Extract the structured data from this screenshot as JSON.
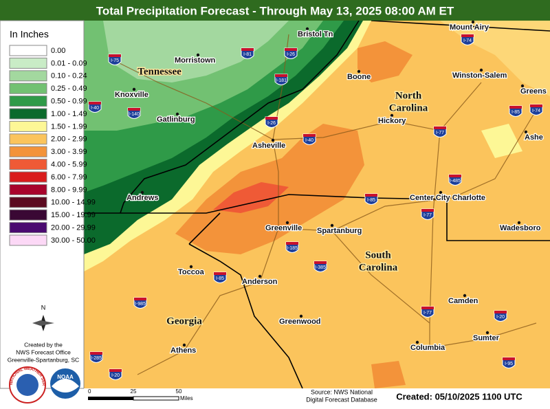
{
  "header": {
    "title": "Total Precipitation Forecast - Through May 13, 2025 08:00 AM ET"
  },
  "legend": {
    "title": "In Inches",
    "items": [
      {
        "label": "0.00",
        "color": "#ffffff"
      },
      {
        "label": "0.01 - 0.09",
        "color": "#c9ecc6"
      },
      {
        "label": "0.10 - 0.24",
        "color": "#a3d89f"
      },
      {
        "label": "0.25 - 0.49",
        "color": "#72c172"
      },
      {
        "label": "0.50 - 0.99",
        "color": "#2f9a48"
      },
      {
        "label": "1.00 - 1.49",
        "color": "#0b6a2c"
      },
      {
        "label": "1.50 - 1.99",
        "color": "#fdf796"
      },
      {
        "label": "2.00 - 2.99",
        "color": "#fbc45c"
      },
      {
        "label": "3.00 - 3.99",
        "color": "#f3933a"
      },
      {
        "label": "4.00 - 5.99",
        "color": "#ef5a36"
      },
      {
        "label": "6.00 - 7.99",
        "color": "#d91c1c"
      },
      {
        "label": "8.00 - 9.99",
        "color": "#a8042c"
      },
      {
        "label": "10.00 - 14.99",
        "color": "#5c0a20"
      },
      {
        "label": "15.00 - 19.99",
        "color": "#3a0834"
      },
      {
        "label": "20.00 - 29.99",
        "color": "#4a0a70"
      },
      {
        "label": "30.00 - 50.00",
        "color": "#fcd8f6"
      }
    ]
  },
  "compass": "N",
  "office": [
    "Created by the",
    "NWS Forecast Office",
    "Greenville-Spartanburg, SC"
  ],
  "logos": {
    "nws": "NATIONAL WEATHER SERVICE",
    "noaa": "NOAA"
  },
  "states": [
    {
      "lines": [
        "Tennessee"
      ]
    },
    {
      "lines": [
        "North",
        "Carolina"
      ]
    },
    {
      "lines": [
        "South",
        "Carolina"
      ]
    },
    {
      "lines": [
        "Georgia"
      ]
    }
  ],
  "cities": [
    "Bristol Tn",
    "Mount Airy",
    "Morristown",
    "Knoxville",
    "Boone",
    "Winston-Salem",
    "Greens",
    "Gatlinburg",
    "Hickory",
    "Asheville",
    "Ashe",
    "Andrews",
    "Center City Charlotte",
    "Wadesboro",
    "Greenville",
    "Spartanburg",
    "Toccoa",
    "Anderson",
    "Greenwood",
    "Camden",
    "Sumter",
    "Columbia",
    "Athens"
  ],
  "interstates": [
    "I-75",
    "I-81",
    "I-26",
    "I-181",
    "I-40",
    "I-140",
    "I-26",
    "I-40",
    "I-74",
    "I-85",
    "I-74",
    "I-77",
    "I-485",
    "I-85",
    "I-77",
    "I-185",
    "I-385",
    "I-85",
    "I-985",
    "I-77",
    "I-20",
    "I-285",
    "I-20",
    "I-95"
  ],
  "scale": {
    "ticks": [
      "0",
      "25",
      "50"
    ],
    "unit": "Miles"
  },
  "footer": {
    "source": [
      "Source: NWS National",
      "Digital Forecast Database"
    ],
    "created": "Created: 05/10/2025 1100 UTC"
  }
}
